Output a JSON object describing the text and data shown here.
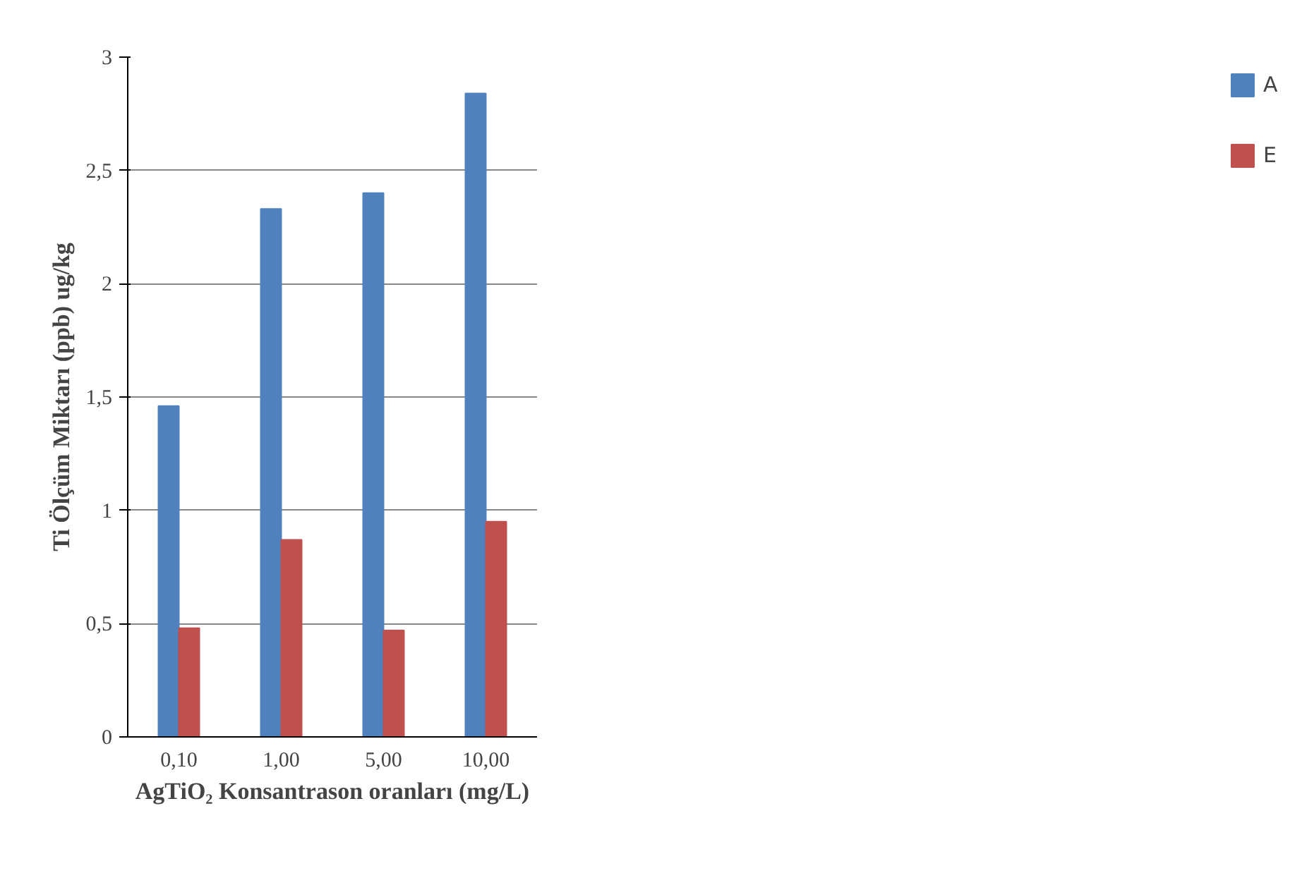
{
  "chart_data": {
    "type": "bar",
    "xlabel": "AgTiO₂ Konsantrason oranları (mg/L)",
    "ylabel": "Ti Ölçüm Miktarı (ppb) ug/kg",
    "categories": [
      "0,10",
      "1,00",
      "5,00",
      "10,00"
    ],
    "series": [
      {
        "name": "A",
        "color": "#4f81bd",
        "values": [
          1.46,
          2.33,
          2.4,
          2.84
        ]
      },
      {
        "name": "E",
        "color": "#c0504d",
        "values": [
          0.48,
          0.87,
          0.47,
          0.95
        ]
      }
    ],
    "ylim": [
      0,
      3
    ],
    "yticks": [
      0,
      {
        "value": 0.5,
        "label": "0,5"
      },
      1,
      {
        "value": 1.5,
        "label": "1,5"
      },
      2,
      {
        "value": 2.5,
        "label": "2,5"
      },
      3
    ],
    "grid": "y",
    "legend": "right"
  }
}
